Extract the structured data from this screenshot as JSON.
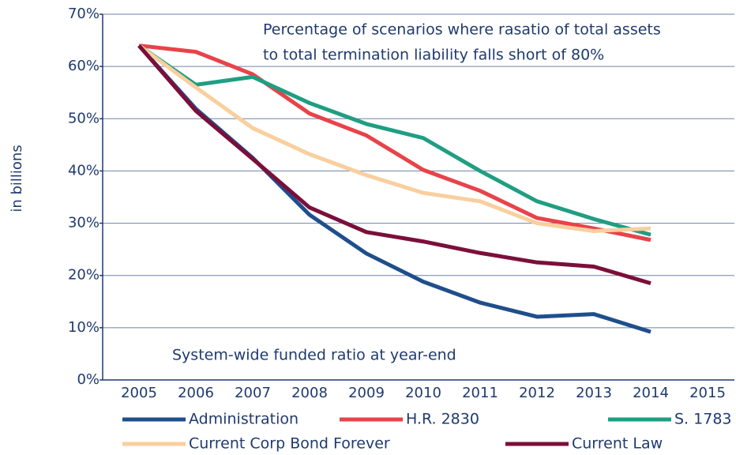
{
  "chart_data": {
    "type": "line",
    "y_label": "in billions",
    "annotations": [
      "Percentage of scenarios where rasatio of total assets",
      "to total termination liability falls short of 80%",
      "System-wide funded ratio at year-end"
    ],
    "categories": [
      "2005",
      "2006",
      "2007",
      "2008",
      "2009",
      "2010",
      "2011",
      "2012",
      "2013",
      "2014",
      "2015"
    ],
    "series": [
      {
        "name": "Administration",
        "color": "#1f4e8c",
        "values": [
          64,
          51.9,
          42.5,
          31.6,
          24.2,
          18.8,
          14.8,
          12.1,
          12.6,
          9.2,
          null
        ]
      },
      {
        "name": "H.R. 2830",
        "color": "#e8434a",
        "values": [
          64,
          62.8,
          58.5,
          51,
          46.8,
          40.2,
          36.2,
          31,
          29,
          26.8,
          null
        ]
      },
      {
        "name": "S. 1783",
        "color": "#1f9e82",
        "values": [
          64,
          56.5,
          58,
          53,
          49,
          46.3,
          40,
          34.2,
          30.8,
          27.8,
          null
        ]
      },
      {
        "name": "Current Corp Bond Forever",
        "color": "#f9cf9e",
        "values": [
          64,
          56,
          48.2,
          43.2,
          39.2,
          35.8,
          34.2,
          30,
          28.5,
          29,
          null
        ]
      },
      {
        "name": "Current Law",
        "color": "#7b0f3a",
        "values": [
          64,
          51.5,
          42.3,
          33,
          28.3,
          26.5,
          24.3,
          22.5,
          21.7,
          18.5,
          null
        ]
      }
    ],
    "ylim": [
      0,
      70
    ],
    "yticks": [
      {
        "value": 0,
        "label": "0%"
      },
      {
        "value": 10,
        "label": "10%"
      },
      {
        "value": 20,
        "label": "20%"
      },
      {
        "value": 30,
        "label": "30%"
      },
      {
        "value": 40,
        "label": "40%"
      },
      {
        "value": 50,
        "label": "50%"
      },
      {
        "value": 60,
        "label": "60%"
      },
      {
        "value": 70,
        "label": "70%"
      }
    ],
    "grid": true
  }
}
